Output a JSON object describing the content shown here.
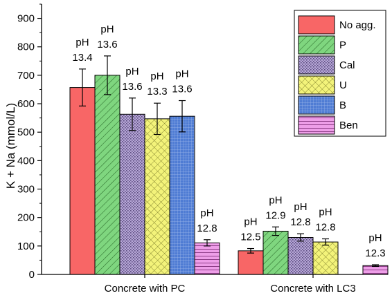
{
  "chart_data": {
    "type": "bar",
    "title": "",
    "xlabel": "",
    "ylabel": "K + Na (mmol/L)",
    "ylim": [
      0,
      950
    ],
    "yticks": [
      0,
      100,
      200,
      300,
      400,
      500,
      600,
      700,
      800,
      900
    ],
    "categories": [
      "Concrete with PC",
      "Concrete with LC3"
    ],
    "legend_position": "top-right",
    "series": [
      {
        "name": "No agg.",
        "color": "#f86666",
        "pattern": "solid",
        "values": [
          657,
          83
        ],
        "errors": [
          65,
          8
        ],
        "annotations": [
          [
            "pH",
            "13.4"
          ],
          [
            "pH",
            "12.5"
          ]
        ]
      },
      {
        "name": "P",
        "color": "#7fd67f",
        "pattern": "diagonal",
        "values": [
          700,
          152
        ],
        "errors": [
          68,
          15
        ],
        "annotations": [
          [
            "pH",
            "13.6"
          ],
          [
            "pH",
            "12.9"
          ]
        ]
      },
      {
        "name": "Cal",
        "color": "#b6a6d6",
        "pattern": "dots",
        "values": [
          563,
          130
        ],
        "errors": [
          57,
          13
        ],
        "annotations": [
          [
            "pH",
            "13.6"
          ],
          [
            "pH",
            "12.8"
          ]
        ]
      },
      {
        "name": "U",
        "color": "#f3f37a",
        "pattern": "crosshatch",
        "values": [
          547,
          114
        ],
        "errors": [
          55,
          11
        ],
        "annotations": [
          [
            "pH",
            "13.3"
          ],
          [
            "pH",
            "12.8"
          ]
        ]
      },
      {
        "name": "B",
        "color": "#4f7cd4",
        "pattern": "grid",
        "values": [
          556,
          null
        ],
        "errors": [
          55,
          null
        ],
        "annotations": [
          [
            "pH",
            "13.6"
          ],
          null
        ]
      },
      {
        "name": "Ben",
        "color": "#ee9ee8",
        "pattern": "horizontal",
        "values": [
          111,
          31
        ],
        "errors": [
          11,
          3
        ],
        "annotations": [
          [
            "pH",
            "12.8"
          ],
          [
            "pH",
            "12.3"
          ]
        ]
      }
    ]
  }
}
